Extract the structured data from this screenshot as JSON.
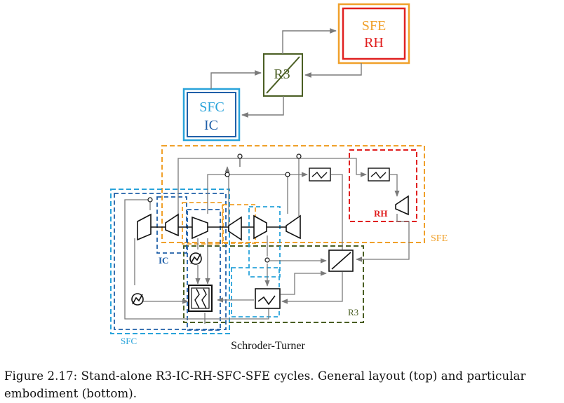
{
  "colors": {
    "line": "#7a7a7a",
    "sfc": "#29a3da",
    "ic": "#1f5fa8",
    "sfe": "#f0a02a",
    "rh": "#e02020",
    "r3": "#4a5e23",
    "black": "#111111"
  },
  "top": {
    "sfe_label": "SFE",
    "rh_label": "RH",
    "r3_label": "R3",
    "sfc_label": "SFC",
    "ic_label": "IC"
  },
  "bottom": {
    "sfe_label": "SFE",
    "rh_label": "RH",
    "ic_label": "IC",
    "r3_label": "R3",
    "sfc_label": "SFC",
    "name": "Schroder-Turner"
  },
  "caption": {
    "line1": "Figure 2.17: Stand-alone R3-IC-RH-SFC-SFE cycles.  General layout (top) and particular",
    "line2": "embodiment (bottom)."
  }
}
